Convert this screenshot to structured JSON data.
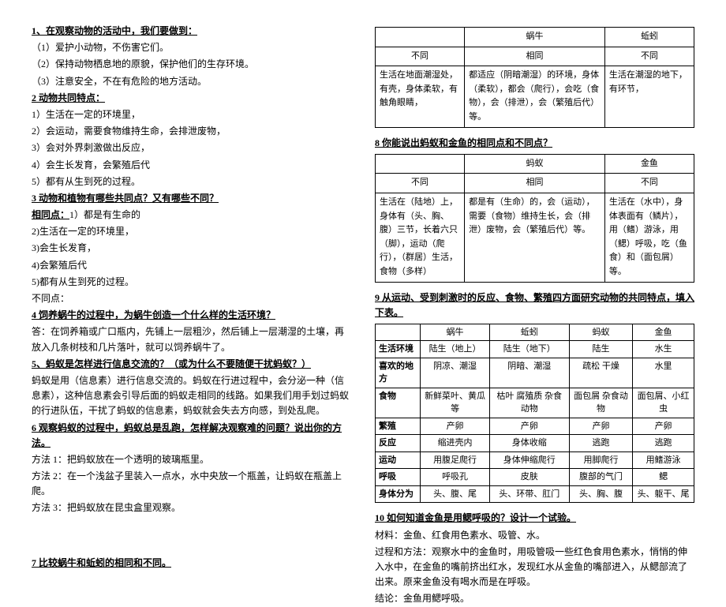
{
  "left": {
    "h1": "1、在观察动物的活动中，我们要做到：",
    "l1a": "（1）爱护小动物，不伤害它们。",
    "l1b": "（2）保持动物栖息地的原貌，保护他们的生存环境。",
    "l1c": "（3）注意安全，不在有危险的地方活动。",
    "h2": "2 动物共同特点：",
    "l2a": "1）生活在一定的环境里，",
    "l2b": "2）会运动，需要食物维持生命，会排泄废物，",
    "l2c": "3）会对外界刺激做出反应，",
    "l2d": "4）会生长发育，会繁殖后代",
    "l2e": "5）都有从生到死的过程。",
    "h3": "3 动物和植物有哪些共同点？又有哪些不同？",
    "h3a": "相同点：",
    "l3a": "1）都是有生命的",
    "l3b": "2)生活在一定的环境里，",
    "l3c": "3)会生长发育，",
    "l3d": "4)会繁殖后代",
    "l3e": "5)都有从生到死的过程。",
    "l3f": "不同点：",
    "h4": "4 饲养蜗牛的过程中，为蜗牛创造一个什么样的生活环境？",
    "l4a": "答：在饲养箱或广口瓶内，先铺上一层粗沙，然后铺上一层潮湿的土壤，再放入几条树枝和几片落叶，就可以饲养蜗牛了。",
    "h5": "5、蚂蚁是怎样进行信息交流的？（或为什么不要随便干扰蚂蚁？）",
    "l5a": "蚂蚁是用（信息素）进行信息交流的。蚂蚁在行进过程中，会分泌一种（信息素），这种信息素会引导后面的蚂蚁走相同的线路。如果我们用手划过蚂蚁的行进队伍，干扰了蚂蚁的信息素，蚂蚁就会失去方向感，到处乱爬。",
    "h6": "6 观察蚂蚁的过程中，蚂蚁总是乱跑，怎样解决观察难的问题？说出你的方法。",
    "l6a": "方法 1：把蚂蚁放在一个透明的玻璃瓶里。",
    "l6b": "方法 2：在一个浅盆子里装入一点水，水中央放一个瓶盖，让蚂蚁在瓶盖上爬。",
    "l6c": "方法 3：把蚂蚁放在昆虫盒里观察。",
    "h7": "7 比较蜗牛和蚯蚓的相同和不同。"
  },
  "right": {
    "t1": {
      "h_snail": "蜗牛",
      "h_worm": "蚯蚓",
      "diff": "不同",
      "same": "相同",
      "snail_diff": "生活在地面潮湿处，有壳，身体柔软，有触角眼睛，",
      "same_txt": "都适应（阴暗潮湿）的环境，身体（柔软），都会（爬行），会吃（食物），会（排泄），会（繁殖后代）等。",
      "worm_diff": "生活在潮湿的地下，有环节，"
    },
    "h8": "8 你能说出蚂蚁和金鱼的相同点和不同点？",
    "t2": {
      "h_ant": "蚂蚁",
      "h_fish": "金鱼",
      "diff": "不同",
      "same": "相同",
      "ant_diff": "生活在（陆地）上，身体有（头、胸、腹）三节，长着六只（脚），运动（爬行），（群居）生活，食物（多样）",
      "same_txt": "都是有（生命）的，会（运动），需要（食物）维持生长，会（排泄）废物，会（繁殖后代）等。",
      "fish_diff": "生活在（水中），身体表面有（鳞片），用（鳍）游泳，用（鳃）呼吸，吃（鱼食）和（面包屑）等。"
    },
    "h9": "9 从运动、受到刺激时的反应、食物、繁殖四方面研究动物的共同特点，填入下表。",
    "t3": {
      "cols": [
        "",
        "蜗牛",
        "蚯蚓",
        "蚂蚁",
        "金鱼"
      ],
      "rows": [
        [
          "生活环境",
          "陆生（地上）",
          "陆生（地下）",
          "陆生",
          "水生"
        ],
        [
          "喜欢的地方",
          "阴凉、潮湿",
          "阴暗、潮湿",
          "疏松 干燥",
          "水里"
        ],
        [
          "食物",
          "新鲜菜叶、黄瓜等",
          "枯叶 腐殖质 杂食动物",
          "面包屑 杂食动物",
          "面包屑、小红虫"
        ],
        [
          "繁殖",
          "产卵",
          "产卵",
          "产卵",
          "产卵"
        ],
        [
          "反应",
          "缩进壳内",
          "身体收缩",
          "逃跑",
          "逃跑"
        ],
        [
          "运动",
          "用腹足爬行",
          "身体伸缩爬行",
          "用脚爬行",
          "用鳍游泳"
        ],
        [
          "呼吸",
          "呼吸孔",
          "皮肤",
          "腹部的气门",
          "鳃"
        ],
        [
          "身体分为",
          "头、腹、尾",
          "头、环带、肛门",
          "头、胸、腹",
          "头、躯干、尾"
        ]
      ]
    },
    "h10": "10 如何知道金鱼是用鳃呼吸的？设计一个试验。",
    "l10a": "材料：金鱼、红食用色素水、吸管、水。",
    "l10b": "过程和方法：观察水中的金鱼时，用吸管吸一些红色食用色素水，悄悄的伸入水中，在金鱼的嘴前挤出红水，发现红水从金鱼的嘴部进入，从鳃部流了出来。原来金鱼没有喝水而是在呼吸。",
    "l10c": "结论：金鱼用鳃呼吸。"
  }
}
